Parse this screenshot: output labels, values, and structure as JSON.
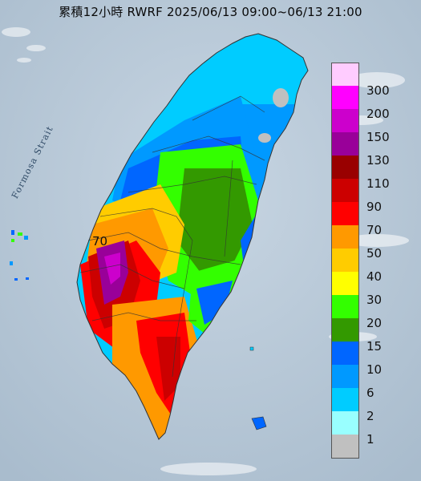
{
  "title": "累積12小時 RWRF 2025/06/13 09:00~06/13 21:00",
  "strait_label": "Formosa Strait",
  "contour_label": "70",
  "legend": [
    {
      "label": "300",
      "color": "#ffccff"
    },
    {
      "label": "200",
      "color": "#ff00ff"
    },
    {
      "label": "150",
      "color": "#cc00cc"
    },
    {
      "label": "130",
      "color": "#990099"
    },
    {
      "label": "110",
      "color": "#990000"
    },
    {
      "label": "90",
      "color": "#cc0000"
    },
    {
      "label": "70",
      "color": "#ff0000"
    },
    {
      "label": "50",
      "color": "#ff9900"
    },
    {
      "label": "40",
      "color": "#ffcc00"
    },
    {
      "label": "30",
      "color": "#ffff00"
    },
    {
      "label": "20",
      "color": "#33ff00"
    },
    {
      "label": "15",
      "color": "#339900"
    },
    {
      "label": "10",
      "color": "#0066ff"
    },
    {
      "label": "6",
      "color": "#0099ff"
    },
    {
      "label": "2",
      "color": "#00ccff"
    },
    {
      "label": "1",
      "color": "#99ffff"
    },
    {
      "label": "",
      "color": "#c0c0c0"
    }
  ],
  "colors": {
    "sea": "#b9c8d6",
    "border": "#333333"
  }
}
